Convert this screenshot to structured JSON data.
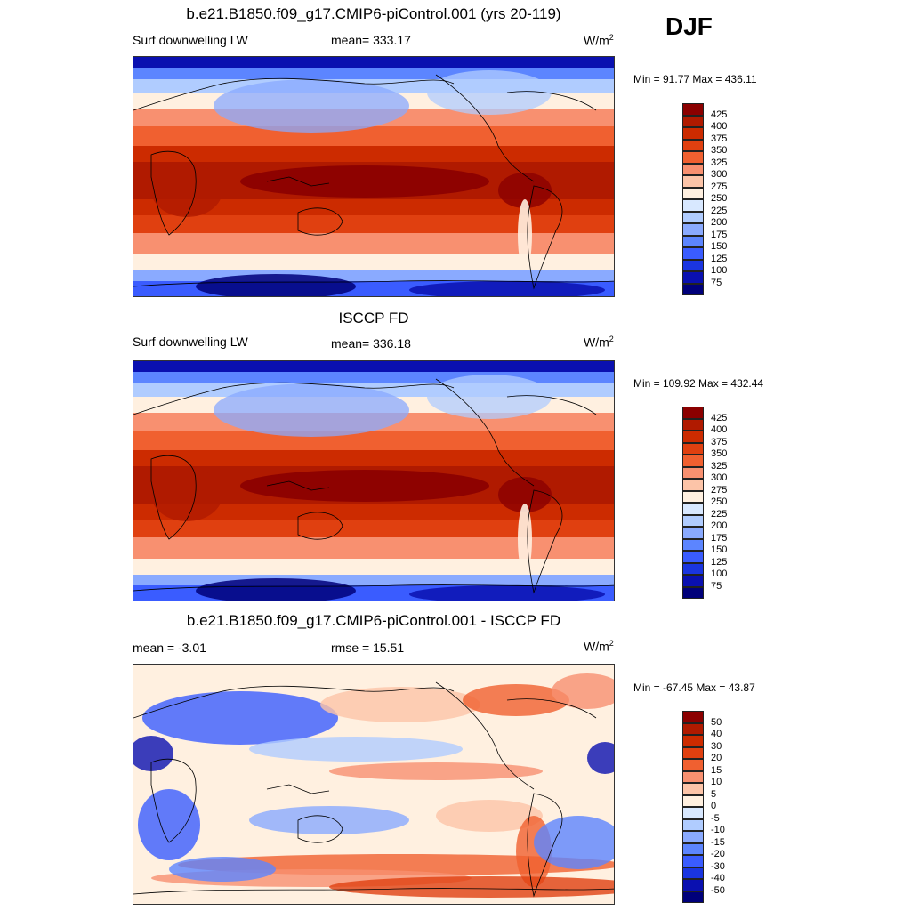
{
  "season": "DJF",
  "panels": [
    {
      "title": "b.e21.B1850.f09_g17.CMIP6-piControl.001 (yrs 20-119)",
      "left_label": "Surf downwelling LW",
      "center_label": "mean= 333.17",
      "units_base": "W/m",
      "units_exp": "2",
      "minmax": "Min =  91.77 Max = 436.11",
      "colorbar": {
        "labels": [
          "425",
          "400",
          "375",
          "350",
          "325",
          "300",
          "275",
          "250",
          "225",
          "200",
          "175",
          "150",
          "125",
          "100",
          "75"
        ],
        "colors": [
          "#8b0000",
          "#b01a00",
          "#cc2b00",
          "#e04010",
          "#f06030",
          "#f89070",
          "#fcc4a8",
          "#fff0e0",
          "#d8e8ff",
          "#b0ccff",
          "#8aaaff",
          "#5c85ff",
          "#3a5cff",
          "#1a35e0",
          "#0a10b0",
          "#00007a"
        ]
      },
      "map": {
        "type": "absolute"
      }
    },
    {
      "title": "ISCCP FD",
      "left_label": "Surf downwelling LW",
      "center_label": "mean= 336.18",
      "units_base": "W/m",
      "units_exp": "2",
      "minmax": "Min = 109.92 Max = 432.44",
      "colorbar": {
        "labels": [
          "425",
          "400",
          "375",
          "350",
          "325",
          "300",
          "275",
          "250",
          "225",
          "200",
          "175",
          "150",
          "125",
          "100",
          "75"
        ],
        "colors": [
          "#8b0000",
          "#b01a00",
          "#cc2b00",
          "#e04010",
          "#f06030",
          "#f89070",
          "#fcc4a8",
          "#fff0e0",
          "#d8e8ff",
          "#b0ccff",
          "#8aaaff",
          "#5c85ff",
          "#3a5cff",
          "#1a35e0",
          "#0a10b0",
          "#00007a"
        ]
      },
      "map": {
        "type": "absolute"
      }
    },
    {
      "title": "b.e21.B1850.f09_g17.CMIP6-piControl.001 - ISCCP FD",
      "left_label": "mean =  -3.01",
      "center_label": "rmse =  15.51",
      "units_base": "W/m",
      "units_exp": "2",
      "minmax": "Min = -67.45 Max =  43.87",
      "colorbar": {
        "labels": [
          "50",
          "40",
          "30",
          "20",
          "15",
          "10",
          "5",
          "0",
          "-5",
          "-10",
          "-15",
          "-20",
          "-30",
          "-40",
          "-50"
        ],
        "colors": [
          "#8b0000",
          "#b01a00",
          "#cc2b00",
          "#e04010",
          "#f06030",
          "#f89070",
          "#fcc4a8",
          "#fff0e0",
          "#d8e8ff",
          "#b0ccff",
          "#8aaaff",
          "#5c85ff",
          "#3a5cff",
          "#1a35e0",
          "#0a10b0",
          "#00007a"
        ]
      },
      "map": {
        "type": "difference"
      }
    }
  ]
}
